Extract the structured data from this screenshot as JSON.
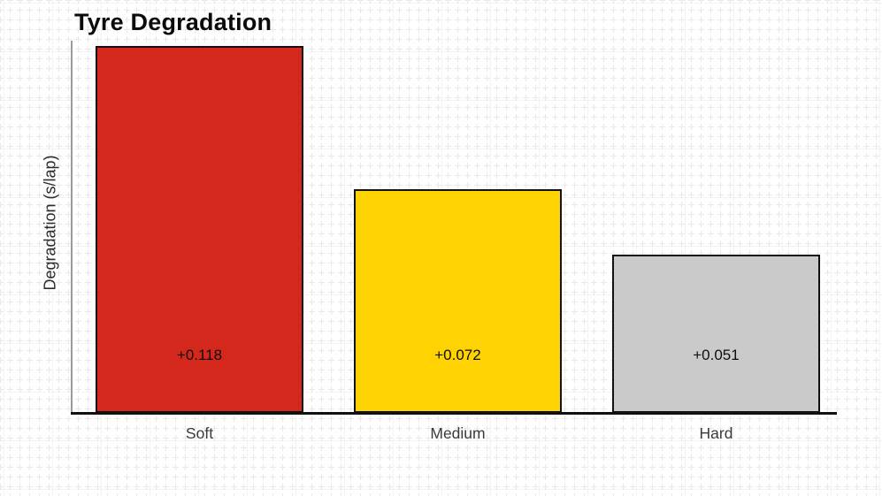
{
  "title": "Tyre Degradation",
  "y_axis_label": "Degradation (s/lap)",
  "chart_data": {
    "type": "bar",
    "title": "Tyre Degradation",
    "xlabel": "",
    "ylabel": "Degradation (s/lap)",
    "categories": [
      "Soft",
      "Medium",
      "Hard"
    ],
    "values": [
      0.118,
      0.072,
      0.051
    ],
    "value_labels": [
      "+0.118",
      "+0.072",
      "+0.051"
    ],
    "bar_colors": [
      "#d5281c",
      "#ffd202",
      "#cacaca"
    ],
    "bar_border_color": "#111111",
    "ylim": [
      0,
      0.118
    ],
    "grid": "graph-paper page background, no plot gridlines",
    "legend": "none",
    "value_label_position": "inside-bottom"
  }
}
